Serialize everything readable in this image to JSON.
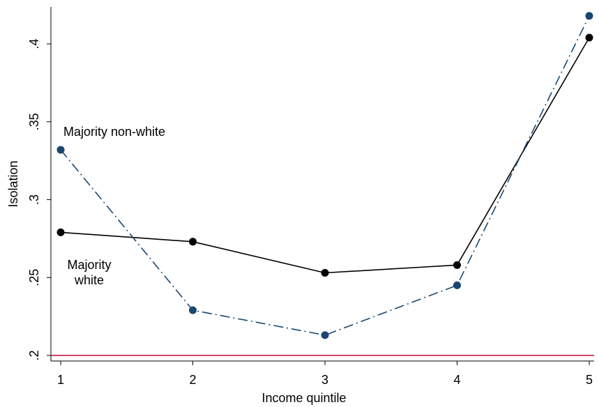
{
  "chart_data": {
    "type": "line",
    "xlabel": "Income quintile",
    "ylabel": "Isolation",
    "x": [
      1,
      2,
      3,
      4,
      5
    ],
    "series": [
      {
        "name": "Majority white",
        "color": "#000000",
        "dash": "solid",
        "values": [
          0.279,
          0.273,
          0.253,
          0.258,
          0.404
        ]
      },
      {
        "name": "Majority non-white",
        "color": "#1a476f",
        "dash": "dashdot",
        "values": [
          0.332,
          0.229,
          0.213,
          0.245,
          0.418
        ]
      }
    ],
    "xlim": [
      0.926,
      5.037
    ],
    "xticks": [
      1,
      2,
      3,
      4,
      5
    ],
    "ylim": [
      0.1964,
      0.4237
    ],
    "yticks": [
      {
        "value": 0.2,
        "label": ".2"
      },
      {
        "value": 0.25,
        "label": ".25"
      },
      {
        "value": 0.3,
        "label": ".3"
      },
      {
        "value": 0.35,
        "label": ".35"
      },
      {
        "value": 0.4,
        "label": ".4"
      }
    ],
    "reference_line": {
      "value": 0.2,
      "color": "#c10534"
    }
  }
}
